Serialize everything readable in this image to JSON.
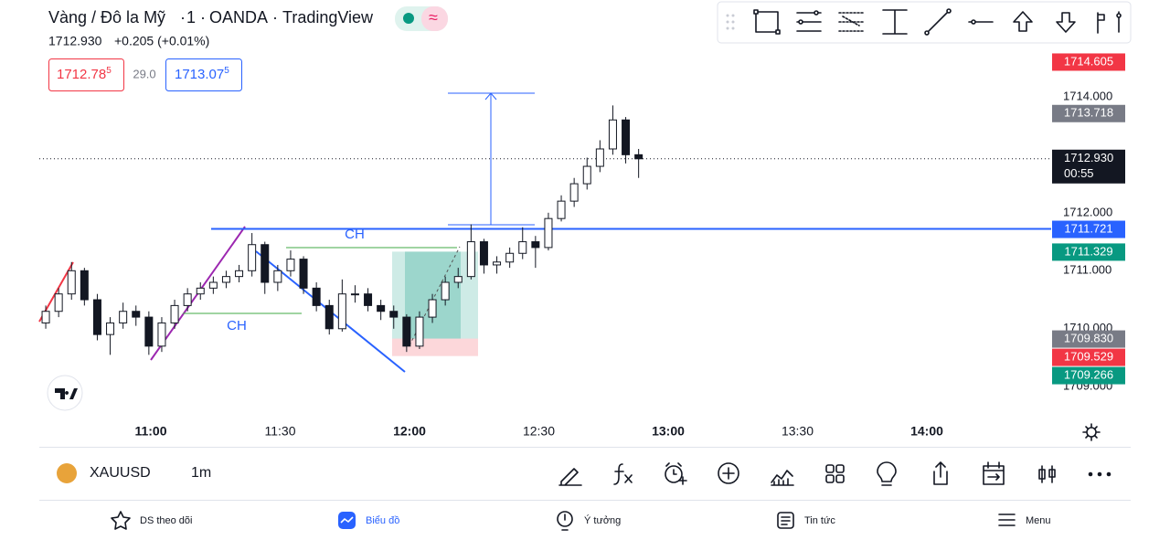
{
  "header": {
    "symbol_name": "Vàng / Đô la Mỹ",
    "interval": "1",
    "exchange": "OANDA",
    "provider": "TradingView",
    "last_price": "1712.930",
    "change": "+0.205 (+0.01%)"
  },
  "trade": {
    "sell_price": "1712.78",
    "sell_pip": "5",
    "spread": "29.0",
    "buy_price": "1713.07",
    "buy_pip": "5"
  },
  "chart": {
    "type": "candlestick",
    "candles": [
      [
        1710.1,
        1710.4,
        1710.0,
        1710.3
      ],
      [
        1710.3,
        1710.7,
        1710.2,
        1710.6
      ],
      [
        1710.6,
        1711.15,
        1710.5,
        1711.0
      ],
      [
        1711.0,
        1711.05,
        1710.4,
        1710.5
      ],
      [
        1710.5,
        1710.6,
        1709.8,
        1709.9
      ],
      [
        1709.9,
        1710.2,
        1709.55,
        1710.1
      ],
      [
        1710.1,
        1710.45,
        1710.0,
        1710.3
      ],
      [
        1710.3,
        1710.4,
        1710.05,
        1710.2
      ],
      [
        1710.2,
        1710.3,
        1709.55,
        1709.7
      ],
      [
        1709.7,
        1710.2,
        1709.6,
        1710.1
      ],
      [
        1710.1,
        1710.5,
        1710.0,
        1710.4
      ],
      [
        1710.4,
        1710.7,
        1710.3,
        1710.6
      ],
      [
        1710.6,
        1710.8,
        1710.5,
        1710.7
      ],
      [
        1710.7,
        1710.9,
        1710.6,
        1710.8
      ],
      [
        1710.8,
        1711.0,
        1710.7,
        1710.9
      ],
      [
        1710.9,
        1711.1,
        1710.8,
        1711.0
      ],
      [
        1711.0,
        1711.65,
        1710.9,
        1711.45
      ],
      [
        1711.45,
        1711.5,
        1710.6,
        1710.8
      ],
      [
        1710.8,
        1711.1,
        1710.65,
        1711.0
      ],
      [
        1711.0,
        1711.35,
        1710.9,
        1711.2
      ],
      [
        1711.2,
        1711.25,
        1710.6,
        1710.7
      ],
      [
        1710.7,
        1710.8,
        1710.3,
        1710.4
      ],
      [
        1710.4,
        1710.5,
        1709.9,
        1710.0
      ],
      [
        1710.0,
        1710.85,
        1709.95,
        1710.6
      ],
      [
        1710.6,
        1710.75,
        1710.45,
        1710.6
      ],
      [
        1710.6,
        1710.7,
        1710.3,
        1710.4
      ],
      [
        1710.4,
        1710.5,
        1710.15,
        1710.3
      ],
      [
        1710.3,
        1710.4,
        1710.0,
        1710.2
      ],
      [
        1710.2,
        1710.25,
        1709.6,
        1709.7
      ],
      [
        1709.7,
        1710.3,
        1709.65,
        1710.2
      ],
      [
        1710.2,
        1710.6,
        1710.1,
        1710.5
      ],
      [
        1710.5,
        1710.9,
        1710.4,
        1710.8
      ],
      [
        1710.8,
        1711.05,
        1710.7,
        1710.9
      ],
      [
        1710.9,
        1711.8,
        1710.85,
        1711.5
      ],
      [
        1711.5,
        1711.55,
        1710.95,
        1711.1
      ],
      [
        1711.1,
        1711.25,
        1710.95,
        1711.15
      ],
      [
        1711.15,
        1711.4,
        1711.05,
        1711.3
      ],
      [
        1711.3,
        1711.75,
        1711.2,
        1711.5
      ],
      [
        1711.5,
        1711.6,
        1711.05,
        1711.4
      ],
      [
        1711.4,
        1712.0,
        1711.35,
        1711.9
      ],
      [
        1711.9,
        1712.3,
        1711.85,
        1712.2
      ],
      [
        1712.2,
        1712.6,
        1712.1,
        1712.5
      ],
      [
        1712.5,
        1712.95,
        1712.4,
        1712.8
      ],
      [
        1712.8,
        1713.25,
        1712.7,
        1713.1
      ],
      [
        1713.1,
        1713.85,
        1713.0,
        1713.6
      ],
      [
        1713.6,
        1713.65,
        1712.85,
        1713.0
      ],
      [
        1713.0,
        1713.1,
        1712.6,
        1712.93
      ]
    ],
    "ylim": [
      1708.5,
      1714.88
    ],
    "yticks": [
      {
        "value": 1709,
        "label": "1709.000"
      },
      {
        "value": 1710,
        "label": "1710.000"
      },
      {
        "value": 1711,
        "label": "1711.000"
      },
      {
        "value": 1712,
        "label": "1712.000"
      },
      {
        "value": 1714,
        "label": "1714.000"
      }
    ],
    "price_markers": [
      {
        "value": 1714.605,
        "label": "1714.605",
        "color": "#f23645"
      },
      {
        "value": 1713.718,
        "label": "1713.718",
        "color": "#787b86"
      },
      {
        "value": 1711.721,
        "label": "1711.721",
        "color": "#2962ff"
      },
      {
        "value": 1711.329,
        "label": "1711.329",
        "color": "#089981"
      },
      {
        "value": 1709.83,
        "label": "1709.830",
        "color": "#787b86"
      },
      {
        "value": 1709.529,
        "label": "1709.529",
        "color": "#f23645"
      },
      {
        "value": 1709.266,
        "label": "1709.266",
        "color": "#089981"
      }
    ],
    "current_price": {
      "value": 1712.93,
      "label": "1712.930",
      "countdown": "00:55"
    },
    "annotations": [
      "CH",
      "CH"
    ],
    "time_labels": [
      "11:00",
      "11:30",
      "12:00",
      "12:30",
      "13:00",
      "13:30",
      "14:00"
    ]
  },
  "bottom_bar": {
    "symbol": "XAUUSD",
    "interval": "1m"
  },
  "nav": [
    "DS theo dõi",
    "Biểu đồ",
    "Ý tưởng",
    "Tin tức",
    "Menu"
  ]
}
